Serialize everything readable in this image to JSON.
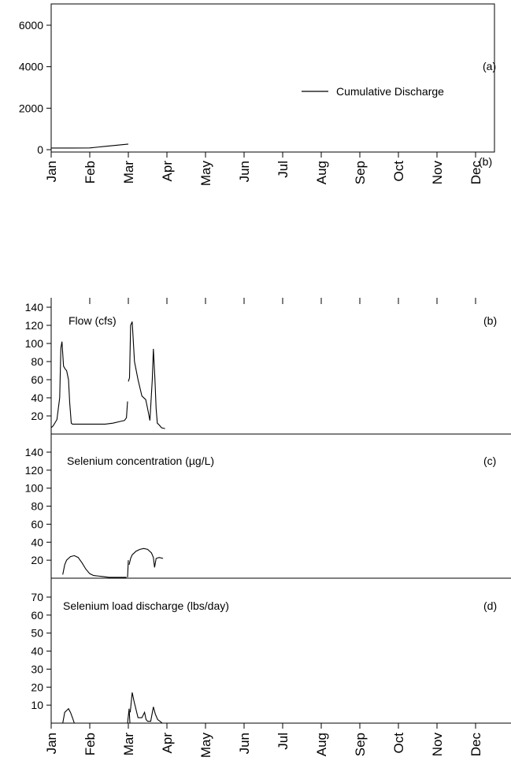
{
  "months": [
    "Jan",
    "Feb",
    "Mar",
    "Apr",
    "May",
    "Jun",
    "Jul",
    "Aug",
    "Sep",
    "Oct",
    "Nov",
    "Dec"
  ],
  "chart_data": [
    {
      "id": "a",
      "type": "line",
      "panel_label": "(a)",
      "stray_label": "(b)",
      "legend": "Cumulative Discharge",
      "legend_position": "right",
      "ylim": [
        0,
        7000
      ],
      "yticks": [
        0,
        2000,
        4000,
        6000
      ],
      "series": [
        {
          "name": "Cumulative Discharge",
          "x": [
            0,
            0.5,
            1,
            1.5,
            2
          ],
          "y": [
            80,
            80,
            85,
            180,
            270
          ]
        }
      ]
    },
    {
      "id": "b",
      "type": "line",
      "title": "Flow (cfs)",
      "panel_label": "(b)",
      "ylim": [
        0,
        150
      ],
      "yticks": [
        20,
        40,
        60,
        80,
        100,
        120,
        140
      ],
      "segments": [
        {
          "x": [
            0,
            0.05,
            0.15,
            0.22,
            0.25,
            0.28,
            0.32,
            0.36,
            0.4,
            0.45,
            0.48,
            0.52,
            0.55,
            0.6,
            0.7,
            0.8,
            0.9,
            1.0,
            1.2,
            1.4,
            1.6,
            1.8,
            1.9,
            1.95,
            1.98
          ],
          "y": [
            7,
            9,
            16,
            40,
            95,
            102,
            75,
            72,
            70,
            60,
            35,
            12,
            11,
            11,
            11,
            11,
            11,
            11,
            11,
            11,
            12,
            14,
            15,
            18,
            36
          ]
        },
        {
          "x": [
            2.0,
            2.03,
            2.06,
            2.1,
            2.16,
            2.25,
            2.35,
            2.45,
            2.5,
            2.56,
            2.62,
            2.65,
            2.69,
            2.72,
            2.75,
            2.8,
            2.86,
            2.95
          ],
          "y": [
            58,
            62,
            120,
            124,
            80,
            60,
            42,
            38,
            28,
            15,
            60,
            94,
            60,
            28,
            12,
            10,
            7,
            6
          ]
        }
      ]
    },
    {
      "id": "c",
      "type": "line",
      "title": "Selenium concentration (µg/L)",
      "panel_label": "(c)",
      "ylim": [
        0,
        150
      ],
      "yticks": [
        20,
        40,
        60,
        80,
        100,
        120,
        140
      ],
      "segments": [
        {
          "x": [
            0.3,
            0.35,
            0.4,
            0.5,
            0.6,
            0.7,
            0.8,
            0.9,
            1.0,
            1.1,
            1.3,
            1.5,
            1.7,
            1.85,
            1.95
          ],
          "y": [
            4,
            15,
            20,
            24,
            25,
            23,
            17,
            10,
            5,
            3,
            2,
            1,
            1,
            1,
            1
          ]
        },
        {
          "x": [
            1.98,
            2.0
          ],
          "y": [
            1,
            20
          ]
        },
        {
          "x": [
            2.02,
            2.06,
            2.1,
            2.2,
            2.3,
            2.4,
            2.5,
            2.6,
            2.65,
            2.68,
            2.72,
            2.8,
            2.9
          ],
          "y": [
            15,
            22,
            26,
            30,
            32,
            33,
            32,
            28,
            23,
            12,
            22,
            23,
            22
          ]
        }
      ]
    },
    {
      "id": "d",
      "type": "line",
      "title": "Selenium load discharge (lbs/day)",
      "panel_label": "(d)",
      "ylim": [
        0,
        75
      ],
      "yticks": [
        10,
        20,
        30,
        40,
        50,
        60,
        70
      ],
      "segments": [
        {
          "x": [
            0.3,
            0.35,
            0.4,
            0.45,
            0.5,
            0.55,
            0.6
          ],
          "y": [
            0,
            6,
            7,
            8,
            6,
            3,
            0
          ]
        },
        {
          "x": [
            1.98,
            2.02,
            2.04
          ],
          "y": [
            0,
            8,
            0
          ]
        },
        {
          "x": [
            2.05,
            2.1,
            2.15,
            2.25,
            2.35,
            2.42,
            2.46,
            2.5,
            2.58,
            2.65,
            2.7,
            2.76,
            2.82,
            2.88
          ],
          "y": [
            6,
            17,
            12,
            3,
            3,
            6,
            2,
            1,
            1,
            9,
            5,
            2,
            1,
            0
          ]
        }
      ]
    }
  ]
}
